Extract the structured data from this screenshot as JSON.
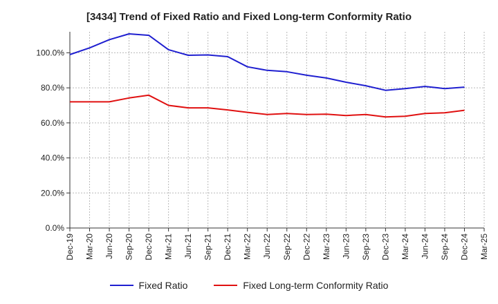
{
  "chart_data": {
    "type": "line",
    "title": "[3434]  Trend of Fixed Ratio and Fixed Long-term Conformity Ratio",
    "xlabel": "",
    "ylabel": "",
    "categories": [
      "Dec-19",
      "Mar-20",
      "Jun-20",
      "Sep-20",
      "Dec-20",
      "Mar-21",
      "Jun-21",
      "Sep-21",
      "Dec-21",
      "Mar-22",
      "Jun-22",
      "Sep-22",
      "Dec-22",
      "Mar-23",
      "Jun-23",
      "Sep-23",
      "Dec-23",
      "Mar-24",
      "Jun-24",
      "Sep-24",
      "Dec-24",
      "Mar-25"
    ],
    "y_ticks": [
      "0.0%",
      "20.0%",
      "40.0%",
      "60.0%",
      "80.0%",
      "100.0%"
    ],
    "ylim": [
      0,
      112
    ],
    "grid": true,
    "legend_position": "bottom",
    "series": [
      {
        "name": "Fixed Ratio",
        "color": "#1f1fd0",
        "values": [
          99.0,
          102.8,
          107.5,
          110.8,
          110.0,
          101.8,
          98.6,
          98.8,
          97.8,
          92.0,
          90.0,
          89.2,
          87.2,
          85.6,
          83.2,
          81.2,
          78.6,
          79.6,
          80.8,
          79.6,
          80.4,
          null
        ]
      },
      {
        "name": "Fixed Long-term Conformity Ratio",
        "color": "#e01010",
        "values": [
          72.0,
          72.0,
          72.0,
          74.2,
          75.8,
          70.0,
          68.6,
          68.6,
          67.4,
          66.0,
          64.8,
          65.4,
          64.8,
          65.0,
          64.2,
          64.8,
          63.4,
          63.8,
          65.4,
          65.8,
          67.2,
          null
        ]
      }
    ]
  }
}
